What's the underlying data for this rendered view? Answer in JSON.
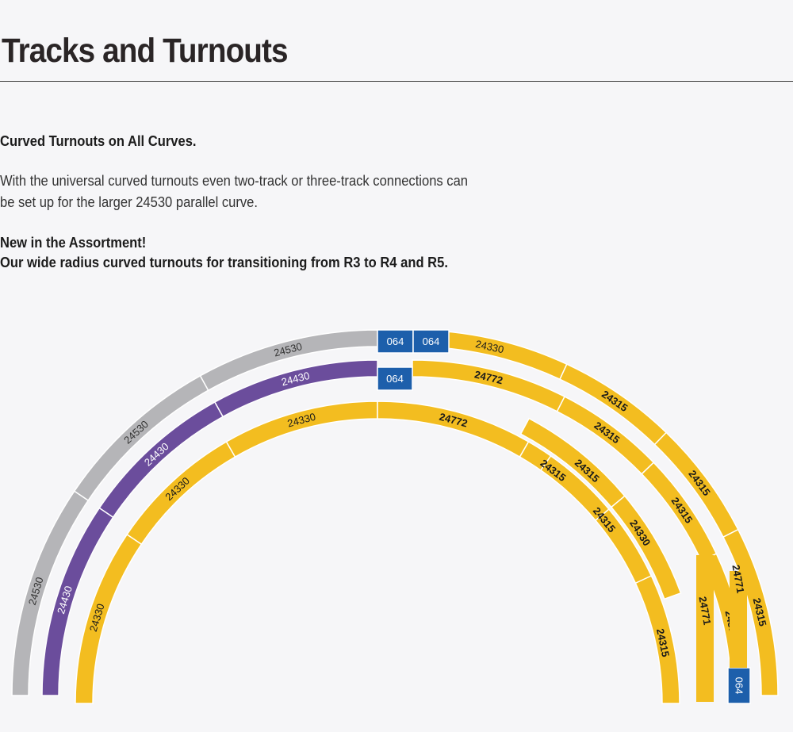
{
  "page": {
    "title": "Tracks and Turnouts",
    "section_heading": "Curved Turnouts on All Curves.",
    "body_lines": [
      "With the universal curved turnouts even two-track or three-track connections can",
      "be set up for the larger 24530 parallel curve."
    ],
    "new_heading_lines": [
      "New in the Assortment!",
      "Our wide radius curved turnouts for transitioning from R3 to R4 and R5."
    ]
  },
  "colors": {
    "gray_track": "#b5b5b8",
    "purple_track": "#6b4d9c",
    "yellow_track": "#f3bd20",
    "blue_section": "#1d5fab",
    "divider": "#ffffff"
  },
  "diagram": {
    "segments": [
      {
        "label": "24530",
        "color": "gray"
      },
      {
        "label": "24530",
        "color": "gray"
      },
      {
        "label": "24530",
        "color": "gray"
      },
      {
        "label": "064",
        "color": "blue"
      },
      {
        "label": "064",
        "color": "blue"
      },
      {
        "label": "24330",
        "color": "yellow"
      },
      {
        "label": "24315",
        "color": "yellow"
      },
      {
        "label": "24315",
        "color": "yellow"
      },
      {
        "label": "24315",
        "color": "yellow"
      },
      {
        "label": "24771",
        "color": "yellow"
      },
      {
        "label": "064",
        "color": "blue"
      },
      {
        "label": "24430",
        "color": "purple"
      },
      {
        "label": "24430",
        "color": "purple"
      },
      {
        "label": "24430",
        "color": "purple"
      },
      {
        "label": "064",
        "color": "blue"
      },
      {
        "label": "24772",
        "color": "yellow"
      },
      {
        "label": "24315",
        "color": "yellow"
      },
      {
        "label": "24315",
        "color": "yellow"
      },
      {
        "label": "24315",
        "color": "yellow"
      },
      {
        "label": "24771",
        "color": "yellow"
      },
      {
        "label": "24330",
        "color": "yellow"
      },
      {
        "label": "24330",
        "color": "yellow"
      },
      {
        "label": "24330",
        "color": "yellow"
      },
      {
        "label": "24772",
        "color": "yellow"
      },
      {
        "label": "24315",
        "color": "yellow"
      },
      {
        "label": "24315",
        "color": "yellow"
      },
      {
        "label": "24315",
        "color": "yellow"
      },
      {
        "label": "24315",
        "color": "yellow"
      },
      {
        "label": "24330",
        "color": "yellow"
      }
    ]
  }
}
